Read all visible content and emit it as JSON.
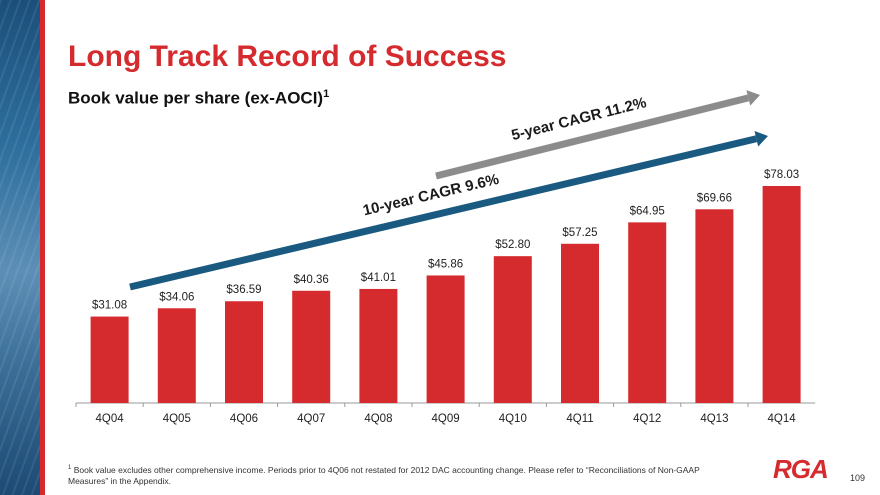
{
  "slide": {
    "title": "Long Track Record of Success",
    "subtitle": "Book value per share (ex-AOCI)",
    "subtitle_sup": "1",
    "footnote_mark": "1",
    "footnote": "Book value excludes other comprehensive income. Periods prior to 4Q06 not restated for 2012 DAC accounting change. Please refer to “Reconciliations of Non-GAAP Measures” in the Appendix.",
    "logo": "RGA",
    "page_number": "109"
  },
  "colors": {
    "bar": "#d52b2e",
    "arrow_10yr": "#1a5a80",
    "arrow_5yr": "#8c8c8c",
    "title": "#d52b2e"
  },
  "chart_data": {
    "type": "bar",
    "title": "Book value per share (ex-AOCI)",
    "xlabel": "",
    "ylabel": "",
    "ylim": [
      0,
      90
    ],
    "categories": [
      "4Q04",
      "4Q05",
      "4Q06",
      "4Q07",
      "4Q08",
      "4Q09",
      "4Q10",
      "4Q11",
      "4Q12",
      "4Q13",
      "4Q14"
    ],
    "values": [
      31.08,
      34.06,
      36.59,
      40.36,
      41.01,
      45.86,
      52.8,
      57.25,
      64.95,
      69.66,
      78.03
    ],
    "data_labels": [
      "$31.08",
      "$34.06",
      "$36.59",
      "$40.36",
      "$41.01",
      "$45.86",
      "$52.80",
      "$57.25",
      "$64.95",
      "$69.66",
      "$78.03"
    ],
    "annotations": [
      {
        "text": "10-year CAGR 9.6%",
        "from_category": "4Q04",
        "to_category": "4Q14"
      },
      {
        "text": "5-year CAGR 11.2%",
        "from_category": "4Q09",
        "to_category": "4Q14"
      }
    ]
  }
}
